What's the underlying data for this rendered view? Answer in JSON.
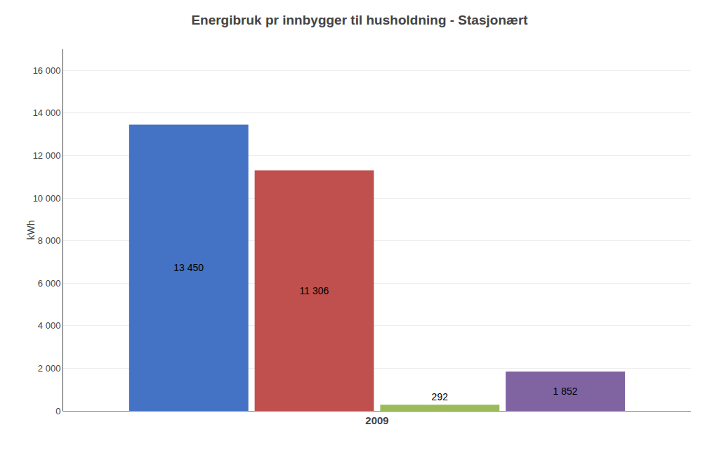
{
  "chart_data": {
    "type": "bar",
    "title": "Energibruk pr innbygger til husholdning - Stasjonært",
    "ylabel": "kWh",
    "categories": [
      "2009"
    ],
    "series": [
      {
        "color": "#4472C4",
        "values": [
          13450
        ],
        "value_labels": [
          "13 450"
        ]
      },
      {
        "color": "#C0504D",
        "values": [
          11306
        ],
        "value_labels": [
          "11 306"
        ]
      },
      {
        "color": "#9BBB59",
        "values": [
          292
        ],
        "value_labels": [
          "292"
        ]
      },
      {
        "color": "#8064A2",
        "values": [
          1852
        ],
        "value_labels": [
          "1 852"
        ]
      }
    ],
    "ylim": [
      0,
      17000
    ],
    "yticks": [
      0,
      {
        "value": 2000,
        "label": "2 000"
      },
      {
        "value": 4000,
        "label": "4 000"
      },
      {
        "value": 6000,
        "label": "6 000"
      },
      {
        "value": 8000,
        "label": "8 000"
      },
      {
        "value": 10000,
        "label": "10 000"
      },
      {
        "value": 12000,
        "label": "12 000"
      },
      {
        "value": 14000,
        "label": "14 000"
      },
      {
        "value": 16000,
        "label": "16 000"
      }
    ],
    "grid": true,
    "data_labels": true
  }
}
